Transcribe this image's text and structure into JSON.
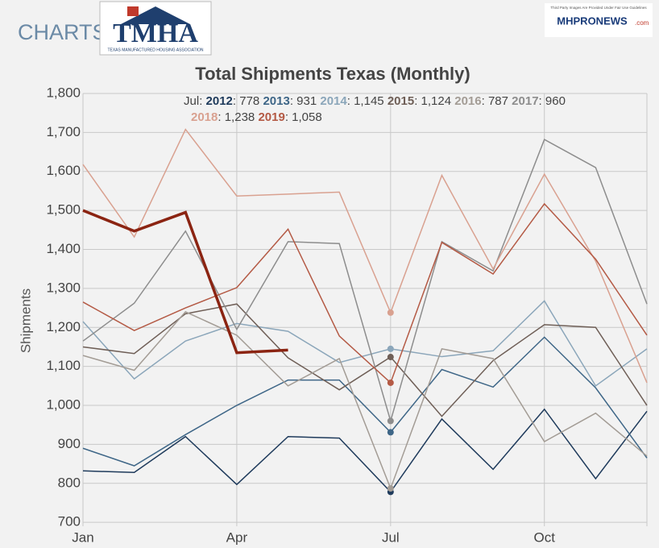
{
  "header": {
    "section": "CHARTS",
    "logo": "TMHA",
    "logo_caption": "TEXAS MANUFACTURED HOUSING ASSOCIATION",
    "badge": "MHPRONEWS",
    "badge_suffix": ".com",
    "badge_note": "Third Party Images Are Provided Under Fair Use Guidelines"
  },
  "chart_data": {
    "type": "line",
    "title": "Total Shipments Texas (Monthly)",
    "y_label": "Shipments",
    "categories": [
      "Jan",
      null,
      null,
      "Apr",
      null,
      null,
      "Jul",
      null,
      null,
      "Oct",
      null,
      null
    ],
    "series": [
      {
        "name": "2012",
        "color": "#1f3b5c",
        "values": [
          832,
          828,
          920,
          797,
          920,
          916,
          778,
          965,
          836,
          990,
          812,
          985
        ]
      },
      {
        "name": "2013",
        "color": "#3e6687",
        "values": [
          890,
          845,
          925,
          1000,
          1065,
          1065,
          931,
          1092,
          1047,
          1175,
          1045,
          865
        ]
      },
      {
        "name": "2014",
        "color": "#8ba6ba",
        "values": [
          1215,
          1068,
          1165,
          1210,
          1190,
          1110,
          1145,
          1125,
          1140,
          1268,
          1050,
          1145
        ],
        "value_labels": [
          null,
          null,
          null,
          null,
          null,
          null,
          "1,145",
          null,
          null,
          null,
          null,
          null
        ]
      },
      {
        "name": "2015",
        "color": "#6f5f57",
        "values": [
          1150,
          1133,
          1235,
          1260,
          1122,
          1040,
          1124,
          972,
          1115,
          1207,
          1200,
          1000
        ],
        "value_labels": [
          null,
          null,
          null,
          null,
          null,
          null,
          "1,124",
          null,
          null,
          null,
          null,
          null
        ]
      },
      {
        "name": "2016",
        "color": "#a39c95",
        "values": [
          1128,
          1090,
          1240,
          1180,
          1050,
          1120,
          787,
          1145,
          1120,
          907,
          980,
          870
        ]
      },
      {
        "name": "2017",
        "color": "#8d8d8d",
        "values": [
          1165,
          1262,
          1447,
          1195,
          1420,
          1415,
          960,
          1420,
          1345,
          1682,
          1610,
          1260
        ]
      },
      {
        "name": "2018",
        "color": "#d9a190",
        "values": [
          1618,
          1432,
          1708,
          1537,
          1542,
          1547,
          1238,
          1590,
          1350,
          1593,
          1370,
          1058
        ],
        "value_labels": [
          null,
          null,
          null,
          null,
          null,
          null,
          "1,238",
          null,
          null,
          null,
          null,
          null
        ]
      },
      {
        "name": "2019",
        "color": "#b45a45",
        "values": [
          1265,
          1192,
          1250,
          1302,
          1452,
          1178,
          1058,
          1418,
          1337,
          1517,
          1375,
          1180
        ],
        "value_labels": [
          null,
          null,
          null,
          null,
          null,
          null,
          "1,058",
          null,
          null,
          null,
          null,
          null
        ]
      },
      {
        "color": "#8b2412",
        "values": [
          1500,
          1447,
          1495,
          1135,
          1142,
          null,
          null,
          null,
          null,
          null,
          null,
          null
        ]
      }
    ],
    "tooltip_index": 6,
    "ylim": [
      690,
      1800
    ],
    "yticks": [
      700,
      800,
      900,
      {
        "value": 1000,
        "label": "1,000"
      },
      {
        "value": 1100,
        "label": "1,100"
      },
      {
        "value": 1200,
        "label": "1,200"
      },
      {
        "value": 1300,
        "label": "1,300"
      },
      {
        "value": 1400,
        "label": "1,400"
      },
      {
        "value": 1500,
        "label": "1,500"
      },
      {
        "value": 1600,
        "label": "1,600"
      },
      {
        "value": 1700,
        "label": "1,700"
      },
      {
        "value": 1800,
        "label": "1,800"
      }
    ],
    "grid": true
  }
}
